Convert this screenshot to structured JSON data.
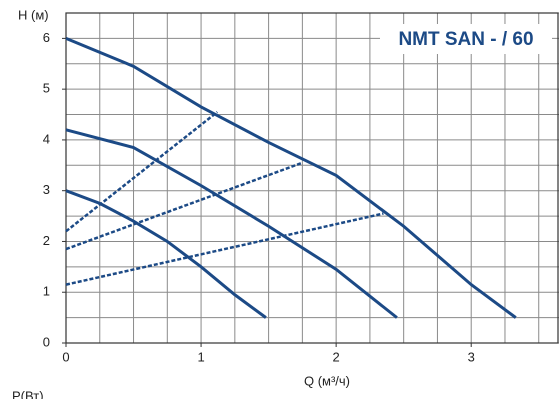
{
  "chart_data": {
    "type": "line",
    "title": "NMT SAN - / 60",
    "y_label": "H (м)",
    "x_label": "Q (м³/ч)",
    "footer_label": "P(Вт)",
    "xlim": [
      0,
      3.65
    ],
    "ylim": [
      0,
      6.5
    ],
    "xticks": [
      0,
      1,
      2,
      3
    ],
    "yticks": [
      0,
      1,
      2,
      3,
      4,
      5,
      6
    ],
    "grid": {
      "x_step": 0.25,
      "y_step": 0.5
    },
    "series": [
      {
        "color": "#1c4a86",
        "dashed": false,
        "x": [
          0,
          0.5,
          1,
          1.5,
          2,
          2.5,
          3,
          3.33
        ],
        "values": [
          6.0,
          5.45,
          4.65,
          3.95,
          3.3,
          2.3,
          1.15,
          0.5
        ]
      },
      {
        "color": "#1c4a86",
        "dashed": false,
        "x": [
          0,
          0.5,
          1,
          1.5,
          2,
          2.45
        ],
        "values": [
          4.2,
          3.85,
          3.1,
          2.3,
          1.45,
          0.5
        ]
      },
      {
        "color": "#1c4a86",
        "dashed": false,
        "x": [
          0,
          0.25,
          0.5,
          0.75,
          1,
          1.25,
          1.48
        ],
        "values": [
          3.0,
          2.75,
          2.4,
          2.0,
          1.5,
          0.95,
          0.5
        ]
      },
      {
        "color": "#1c4a86",
        "dashed": true,
        "x": [
          0,
          1.12
        ],
        "values": [
          2.2,
          4.55
        ]
      },
      {
        "color": "#1c4a86",
        "dashed": true,
        "x": [
          0,
          1.75
        ],
        "values": [
          1.85,
          3.55
        ]
      },
      {
        "color": "#1c4a86",
        "dashed": true,
        "x": [
          0,
          2.35
        ],
        "values": [
          1.15,
          2.55
        ]
      }
    ]
  }
}
